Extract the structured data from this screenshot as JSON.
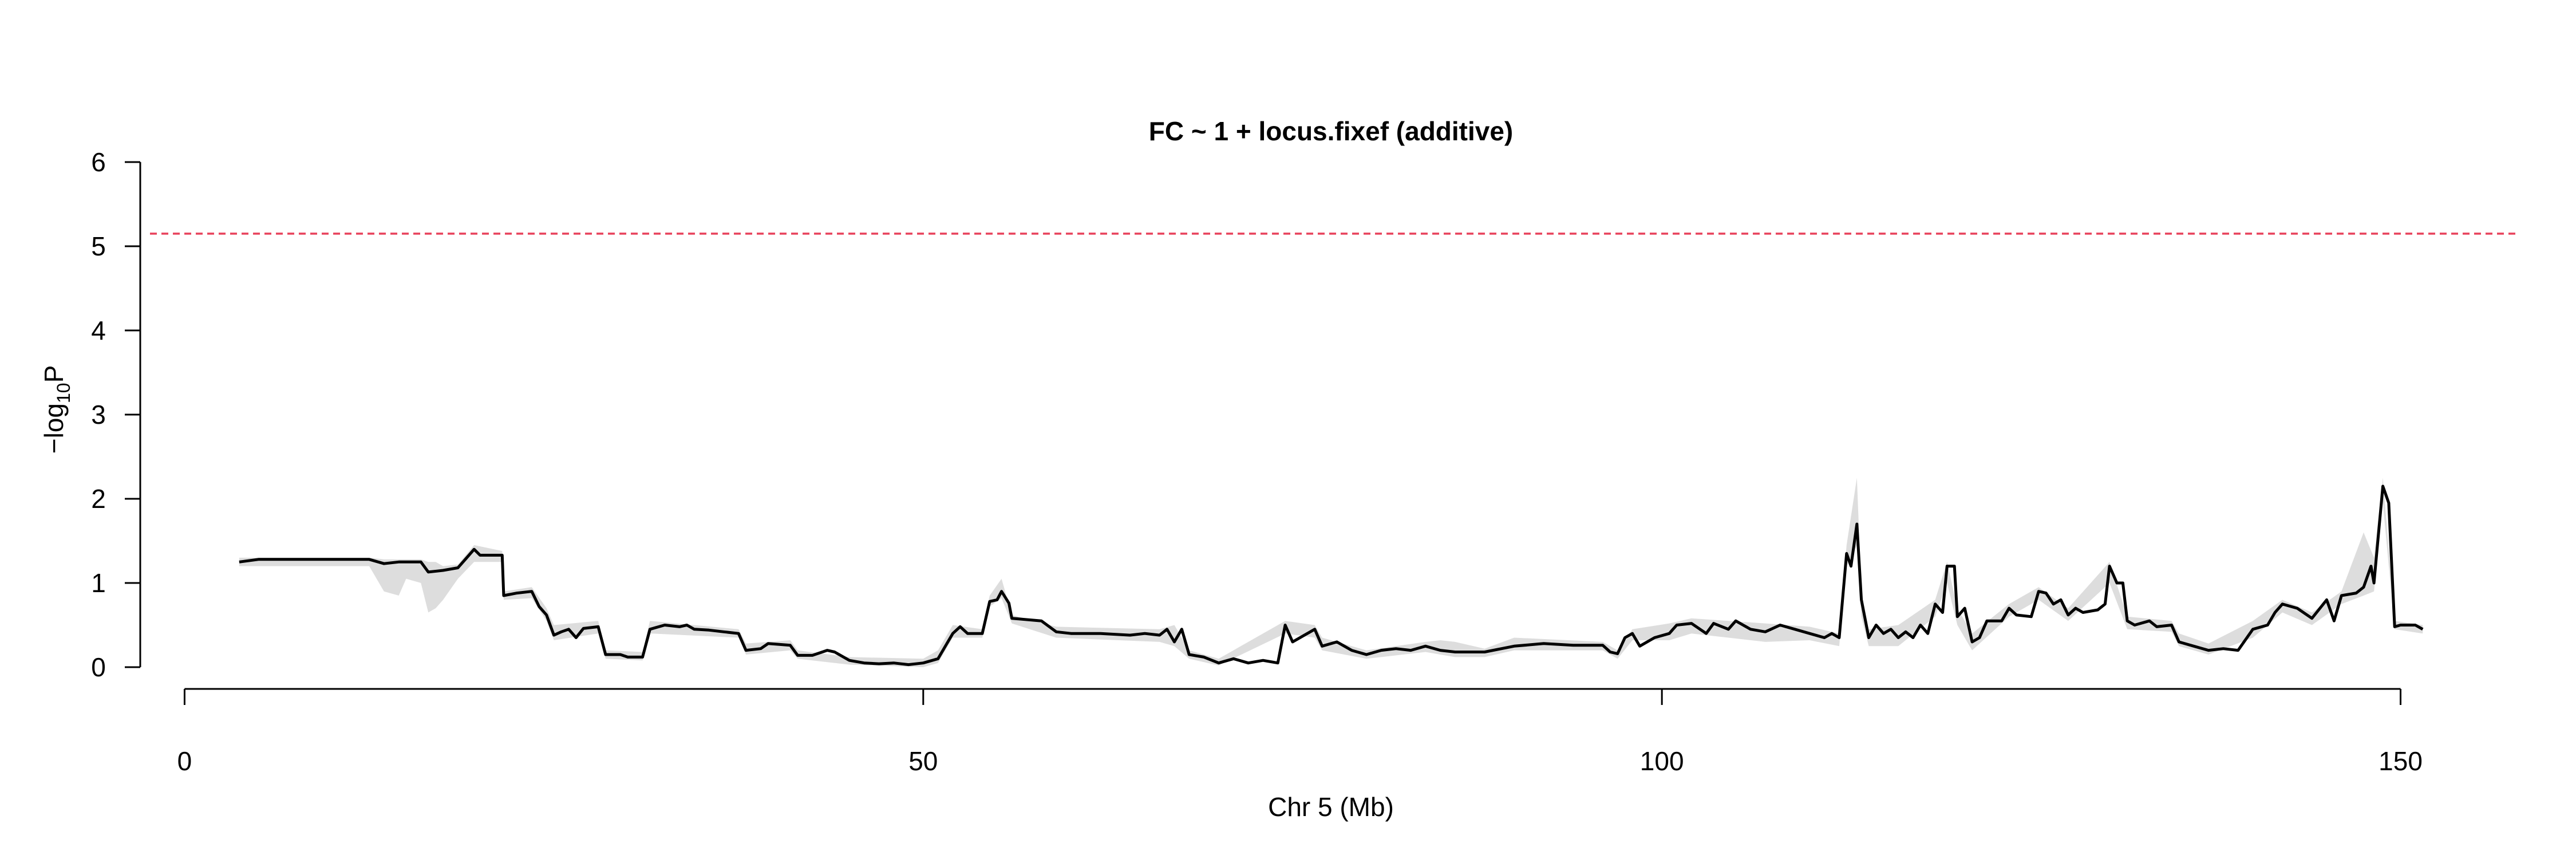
{
  "chart_data": {
    "type": "line",
    "title": "FC ~ 1 + locus.fixef (additive)",
    "xlabel": "Chr 5 (Mb)",
    "ylabel": {
      "prefix": "−log",
      "subscript": "10",
      "suffix": "P"
    },
    "xlim": [
      -3,
      158
    ],
    "ylim": [
      0,
      6
    ],
    "x_ticks": [
      0,
      50,
      100,
      150
    ],
    "y_ticks": [
      0,
      1,
      2,
      3,
      4,
      5,
      6
    ],
    "threshold": {
      "value": 5.15,
      "color": "#e8405a",
      "style": "dashed"
    },
    "line_color": "#000000",
    "band_color": "#dddddd",
    "grid": false,
    "legend": "none",
    "series": [
      {
        "values": [
          [
            3.7,
            1.25
          ],
          [
            5,
            1.28
          ],
          [
            7,
            1.28
          ],
          [
            9,
            1.28
          ],
          [
            11,
            1.28
          ],
          [
            12.5,
            1.28
          ],
          [
            13.5,
            1.23
          ],
          [
            14.5,
            1.25
          ],
          [
            16,
            1.25
          ],
          [
            16.5,
            1.13
          ],
          [
            17.5,
            1.15
          ],
          [
            18.5,
            1.18
          ],
          [
            19,
            1.28
          ],
          [
            19.6,
            1.4
          ],
          [
            20,
            1.33
          ],
          [
            21.5,
            1.33
          ],
          [
            21.6,
            0.85
          ],
          [
            22.5,
            0.88
          ],
          [
            23.5,
            0.9
          ],
          [
            24,
            0.72
          ],
          [
            24.5,
            0.62
          ],
          [
            25,
            0.38
          ],
          [
            25.5,
            0.42
          ],
          [
            26,
            0.45
          ],
          [
            26.5,
            0.35
          ],
          [
            27,
            0.46
          ],
          [
            28,
            0.48
          ],
          [
            28.5,
            0.15
          ],
          [
            29.5,
            0.15
          ],
          [
            30,
            0.12
          ],
          [
            31,
            0.12
          ],
          [
            31.5,
            0.45
          ],
          [
            32.5,
            0.5
          ],
          [
            33.5,
            0.48
          ],
          [
            34,
            0.5
          ],
          [
            34.5,
            0.45
          ],
          [
            35.5,
            0.44
          ],
          [
            36.5,
            0.42
          ],
          [
            37.5,
            0.4
          ],
          [
            38,
            0.2
          ],
          [
            39,
            0.22
          ],
          [
            39.5,
            0.28
          ],
          [
            41,
            0.26
          ],
          [
            41.5,
            0.14
          ],
          [
            42.5,
            0.14
          ],
          [
            43.5,
            0.2
          ],
          [
            44,
            0.18
          ],
          [
            45,
            0.08
          ],
          [
            46,
            0.05
          ],
          [
            47,
            0.04
          ],
          [
            48,
            0.05
          ],
          [
            49,
            0.03
          ],
          [
            50,
            0.05
          ],
          [
            51,
            0.1
          ],
          [
            52,
            0.4
          ],
          [
            52.5,
            0.48
          ],
          [
            53,
            0.4
          ],
          [
            54,
            0.4
          ],
          [
            54.5,
            0.78
          ],
          [
            55,
            0.8
          ],
          [
            55.3,
            0.9
          ],
          [
            55.8,
            0.76
          ],
          [
            56,
            0.58
          ],
          [
            58,
            0.55
          ],
          [
            59,
            0.42
          ],
          [
            60,
            0.4
          ],
          [
            62,
            0.4
          ],
          [
            64,
            0.38
          ],
          [
            65,
            0.4
          ],
          [
            66,
            0.38
          ],
          [
            66.5,
            0.45
          ],
          [
            67,
            0.3
          ],
          [
            67.5,
            0.45
          ],
          [
            68,
            0.15
          ],
          [
            69,
            0.12
          ],
          [
            70,
            0.05
          ],
          [
            71,
            0.1
          ],
          [
            72,
            0.05
          ],
          [
            73,
            0.08
          ],
          [
            74,
            0.05
          ],
          [
            74.5,
            0.5
          ],
          [
            75,
            0.3
          ],
          [
            76,
            0.4
          ],
          [
            76.5,
            0.45
          ],
          [
            77,
            0.25
          ],
          [
            78,
            0.3
          ],
          [
            79,
            0.2
          ],
          [
            80,
            0.15
          ],
          [
            81,
            0.2
          ],
          [
            82,
            0.22
          ],
          [
            83,
            0.2
          ],
          [
            84,
            0.25
          ],
          [
            85,
            0.2
          ],
          [
            86,
            0.18
          ],
          [
            88,
            0.18
          ],
          [
            90,
            0.25
          ],
          [
            92,
            0.28
          ],
          [
            94,
            0.26
          ],
          [
            96,
            0.26
          ],
          [
            96.5,
            0.18
          ],
          [
            97,
            0.16
          ],
          [
            97.5,
            0.35
          ],
          [
            98,
            0.4
          ],
          [
            98.5,
            0.25
          ],
          [
            99.5,
            0.35
          ],
          [
            100.5,
            0.4
          ],
          [
            101,
            0.5
          ],
          [
            102,
            0.52
          ],
          [
            103,
            0.4
          ],
          [
            103.5,
            0.52
          ],
          [
            104.5,
            0.45
          ],
          [
            105,
            0.55
          ],
          [
            106,
            0.45
          ],
          [
            107,
            0.42
          ],
          [
            108,
            0.5
          ],
          [
            109,
            0.45
          ],
          [
            110,
            0.4
          ],
          [
            111,
            0.35
          ],
          [
            111.5,
            0.4
          ],
          [
            112,
            0.35
          ],
          [
            112.5,
            1.35
          ],
          [
            112.8,
            1.2
          ],
          [
            113.2,
            1.7
          ],
          [
            113.5,
            0.8
          ],
          [
            114,
            0.35
          ],
          [
            114.5,
            0.5
          ],
          [
            115,
            0.4
          ],
          [
            115.5,
            0.45
          ],
          [
            116,
            0.35
          ],
          [
            116.5,
            0.42
          ],
          [
            117,
            0.35
          ],
          [
            117.5,
            0.5
          ],
          [
            118,
            0.4
          ],
          [
            118.5,
            0.75
          ],
          [
            119,
            0.65
          ],
          [
            119.3,
            1.2
          ],
          [
            119.8,
            1.2
          ],
          [
            120,
            0.6
          ],
          [
            120.5,
            0.7
          ],
          [
            121,
            0.3
          ],
          [
            121.5,
            0.35
          ],
          [
            122,
            0.55
          ],
          [
            123,
            0.55
          ],
          [
            123.5,
            0.7
          ],
          [
            124,
            0.62
          ],
          [
            125,
            0.6
          ],
          [
            125.5,
            0.9
          ],
          [
            126,
            0.88
          ],
          [
            126.5,
            0.75
          ],
          [
            127,
            0.8
          ],
          [
            127.5,
            0.62
          ],
          [
            128,
            0.7
          ],
          [
            128.5,
            0.65
          ],
          [
            129.5,
            0.68
          ],
          [
            130,
            0.75
          ],
          [
            130.3,
            1.2
          ],
          [
            130.8,
            1.0
          ],
          [
            131.2,
            1.0
          ],
          [
            131.5,
            0.55
          ],
          [
            132,
            0.5
          ],
          [
            133,
            0.55
          ],
          [
            133.5,
            0.48
          ],
          [
            134.5,
            0.5
          ],
          [
            135,
            0.3
          ],
          [
            136,
            0.25
          ],
          [
            137,
            0.2
          ],
          [
            138,
            0.22
          ],
          [
            139,
            0.2
          ],
          [
            140,
            0.45
          ],
          [
            141,
            0.5
          ],
          [
            141.5,
            0.65
          ],
          [
            142,
            0.75
          ],
          [
            143,
            0.7
          ],
          [
            144,
            0.58
          ],
          [
            145,
            0.8
          ],
          [
            145.5,
            0.55
          ],
          [
            146,
            0.85
          ],
          [
            147,
            0.88
          ],
          [
            147.5,
            0.95
          ],
          [
            148,
            1.2
          ],
          [
            148.2,
            1.0
          ],
          [
            148.8,
            2.15
          ],
          [
            149.2,
            1.95
          ],
          [
            149.6,
            0.48
          ],
          [
            150,
            0.5
          ],
          [
            151,
            0.5
          ],
          [
            151.5,
            0.45
          ]
        ]
      }
    ],
    "band": [
      [
        3.7,
        1.2,
        1.3
      ],
      [
        12.5,
        1.2,
        1.3
      ],
      [
        13.5,
        0.9,
        1.28
      ],
      [
        14.5,
        0.85,
        1.28
      ],
      [
        15,
        1.05,
        1.28
      ],
      [
        16,
        1.0,
        1.28
      ],
      [
        16.5,
        0.65,
        1.25
      ],
      [
        17,
        0.7,
        1.25
      ],
      [
        17.5,
        0.8,
        1.2
      ],
      [
        18.5,
        1.05,
        1.22
      ],
      [
        19.6,
        1.25,
        1.45
      ],
      [
        21.5,
        1.25,
        1.38
      ],
      [
        21.6,
        0.8,
        0.9
      ],
      [
        23.5,
        0.82,
        0.95
      ],
      [
        24.5,
        0.55,
        0.7
      ],
      [
        25,
        0.32,
        0.5
      ],
      [
        28,
        0.4,
        0.55
      ],
      [
        28.5,
        0.1,
        0.2
      ],
      [
        31,
        0.08,
        0.18
      ],
      [
        31.5,
        0.4,
        0.55
      ],
      [
        37.5,
        0.35,
        0.45
      ],
      [
        38,
        0.15,
        0.28
      ],
      [
        41,
        0.2,
        0.32
      ],
      [
        41.5,
        0.1,
        0.2
      ],
      [
        45,
        0.03,
        0.12
      ],
      [
        50,
        0.0,
        0.1
      ],
      [
        51,
        0.05,
        0.2
      ],
      [
        52,
        0.35,
        0.5
      ],
      [
        54,
        0.35,
        0.45
      ],
      [
        54.5,
        0.72,
        0.85
      ],
      [
        55.3,
        0.82,
        1.05
      ],
      [
        56,
        0.52,
        0.62
      ],
      [
        59,
        0.35,
        0.48
      ],
      [
        66,
        0.3,
        0.45
      ],
      [
        67,
        0.25,
        0.5
      ],
      [
        68,
        0.1,
        0.2
      ],
      [
        70,
        0.02,
        0.1
      ],
      [
        74.5,
        0.4,
        0.55
      ],
      [
        76.5,
        0.35,
        0.5
      ],
      [
        77,
        0.2,
        0.35
      ],
      [
        80,
        0.1,
        0.2
      ],
      [
        84,
        0.18,
        0.3
      ],
      [
        85,
        0.15,
        0.32
      ],
      [
        86,
        0.12,
        0.3
      ],
      [
        88,
        0.12,
        0.22
      ],
      [
        90,
        0.2,
        0.35
      ],
      [
        96,
        0.2,
        0.3
      ],
      [
        97,
        0.1,
        0.2
      ],
      [
        98,
        0.32,
        0.45
      ],
      [
        100.5,
        0.32,
        0.52
      ],
      [
        102,
        0.4,
        0.58
      ],
      [
        104.5,
        0.35,
        0.55
      ],
      [
        107,
        0.3,
        0.52
      ],
      [
        110,
        0.32,
        0.48
      ],
      [
        112,
        0.25,
        0.4
      ],
      [
        112.5,
        1.2,
        1.45
      ],
      [
        113.2,
        1.45,
        2.25
      ],
      [
        113.5,
        0.6,
        0.9
      ],
      [
        114,
        0.25,
        0.45
      ],
      [
        116,
        0.25,
        0.5
      ],
      [
        118.5,
        0.6,
        0.8
      ],
      [
        119.3,
        1.0,
        1.25
      ],
      [
        120,
        0.5,
        0.7
      ],
      [
        121,
        0.2,
        0.4
      ],
      [
        123.5,
        0.6,
        0.75
      ],
      [
        125.5,
        0.8,
        0.95
      ],
      [
        127.5,
        0.55,
        0.7
      ],
      [
        130.3,
        1.0,
        1.25
      ],
      [
        131.5,
        0.45,
        0.6
      ],
      [
        134.5,
        0.42,
        0.55
      ],
      [
        135,
        0.25,
        0.4
      ],
      [
        137,
        0.15,
        0.28
      ],
      [
        140,
        0.35,
        0.55
      ],
      [
        142,
        0.65,
        0.8
      ],
      [
        144,
        0.5,
        0.65
      ],
      [
        146,
        0.75,
        0.9
      ],
      [
        147.5,
        0.85,
        1.6
      ],
      [
        148.2,
        0.9,
        1.3
      ],
      [
        148.8,
        1.95,
        2.25
      ],
      [
        149.6,
        0.45,
        0.55
      ],
      [
        151.5,
        0.4,
        0.5
      ]
    ]
  }
}
